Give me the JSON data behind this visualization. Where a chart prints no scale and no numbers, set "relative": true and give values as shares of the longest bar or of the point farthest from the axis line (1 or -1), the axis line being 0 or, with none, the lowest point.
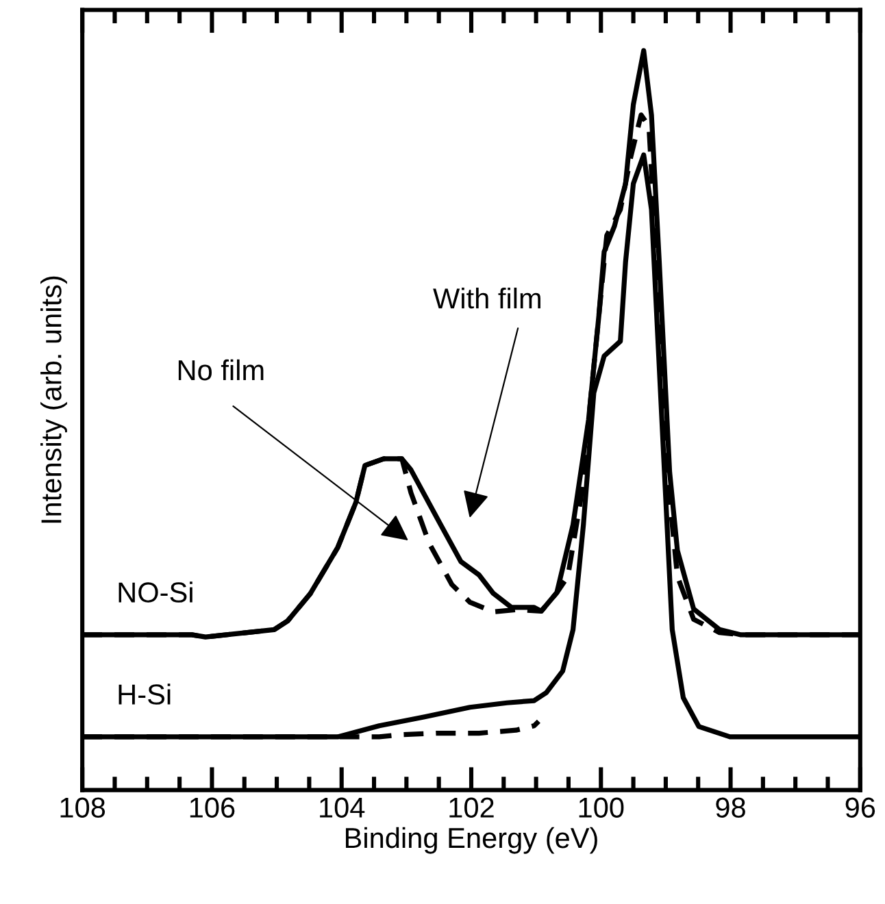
{
  "chart_data": {
    "type": "line",
    "relative": true,
    "xlabel": "Binding Energy (eV)",
    "ylabel": "Intensity (arb. units)",
    "xlim": [
      108,
      96
    ],
    "xticks": [
      108,
      106,
      104,
      102,
      100,
      98,
      96,
      {
        "value": 107.5,
        "label": null
      },
      {
        "value": 107,
        "label": null
      },
      {
        "value": 106.5,
        "label": null
      },
      {
        "value": 105.5,
        "label": null
      },
      {
        "value": 105,
        "label": null
      },
      {
        "value": 104.5,
        "label": null
      },
      {
        "value": 103.5,
        "label": null
      },
      {
        "value": 103,
        "label": null
      },
      {
        "value": 102.5,
        "label": null
      },
      {
        "value": 101.5,
        "label": null
      },
      {
        "value": 101,
        "label": null
      },
      {
        "value": 100.5,
        "label": null
      },
      {
        "value": 99.5,
        "label": null
      },
      {
        "value": 99,
        "label": null
      },
      {
        "value": 98.5,
        "label": null
      },
      {
        "value": 97.5,
        "label": null
      },
      {
        "value": 97,
        "label": null
      },
      {
        "value": 96.5,
        "label": null
      }
    ],
    "grid": false,
    "legend": false,
    "marker": "none",
    "series": [
      {
        "name": "NO-Si",
        "color": "#000000",
        "line_style": "solid",
        "x": [
          108,
          106.31,
          106.1,
          105.04,
          104.83,
          104.48,
          104.06,
          103.78,
          103.64,
          103.35,
          103.07,
          102.93,
          102.51,
          102.16,
          101.88,
          101.66,
          101.38,
          101.03,
          100.92,
          100.68,
          100.43,
          100.19,
          100.03,
          99.95,
          99.79,
          99.62,
          99.5,
          99.34,
          99.22,
          99.1,
          98.94,
          98.82,
          98.57,
          98.17,
          97.84,
          96
        ],
        "values": [
          0.21,
          0.21,
          0.207,
          0.217,
          0.229,
          0.266,
          0.328,
          0.389,
          0.439,
          0.448,
          0.448,
          0.433,
          0.365,
          0.309,
          0.291,
          0.266,
          0.247,
          0.247,
          0.242,
          0.267,
          0.359,
          0.501,
          0.643,
          0.728,
          0.763,
          0.82,
          0.927,
          1.0,
          0.913,
          0.714,
          0.43,
          0.324,
          0.245,
          0.217,
          0.21,
          0.21
        ]
      },
      {
        "color": "#000000",
        "line_style": "dashed",
        "x": [
          108,
          106.31,
          106.1,
          105.04,
          104.83,
          104.48,
          104.06,
          103.78,
          103.64,
          103.35,
          103.07,
          102.93,
          102.65,
          102.3,
          102.02,
          101.66,
          101.31,
          100.92,
          100.68,
          100.51,
          100.31,
          100.11,
          99.91,
          99.7,
          99.54,
          99.38,
          99.26,
          99.14,
          98.98,
          98.82,
          98.57,
          98.17,
          97.84,
          96
        ],
        "values": [
          0.21,
          0.21,
          0.207,
          0.217,
          0.229,
          0.266,
          0.328,
          0.389,
          0.439,
          0.448,
          0.448,
          0.402,
          0.334,
          0.278,
          0.254,
          0.241,
          0.244,
          0.242,
          0.267,
          0.289,
          0.394,
          0.572,
          0.75,
          0.785,
          0.856,
          0.913,
          0.898,
          0.714,
          0.43,
          0.289,
          0.231,
          0.213,
          0.21,
          0.21
        ]
      },
      {
        "name": "H-Si",
        "color": "#000000",
        "line_style": "solid",
        "x": [
          108,
          104.06,
          103.42,
          102.72,
          102.02,
          101.45,
          101.03,
          100.84,
          100.59,
          100.43,
          100.27,
          100.11,
          99.95,
          99.7,
          99.62,
          99.5,
          99.34,
          99.22,
          99.06,
          98.9,
          98.73,
          98.49,
          98.01,
          96
        ],
        "values": [
          0.072,
          0.072,
          0.087,
          0.099,
          0.112,
          0.118,
          0.121,
          0.132,
          0.161,
          0.217,
          0.359,
          0.537,
          0.587,
          0.607,
          0.714,
          0.82,
          0.859,
          0.785,
          0.501,
          0.217,
          0.125,
          0.086,
          0.072,
          0.072
        ]
      },
      {
        "color": "#000000",
        "line_style": "dashed",
        "x": [
          108,
          104.06,
          103.42,
          103.07,
          102.51,
          101.88,
          101.31,
          101.03,
          100.96
        ],
        "values": [
          0.072,
          0.072,
          0.072,
          0.075,
          0.077,
          0.077,
          0.081,
          0.087,
          0.093
        ]
      }
    ],
    "annotations": [
      "No film",
      "With film"
    ]
  }
}
